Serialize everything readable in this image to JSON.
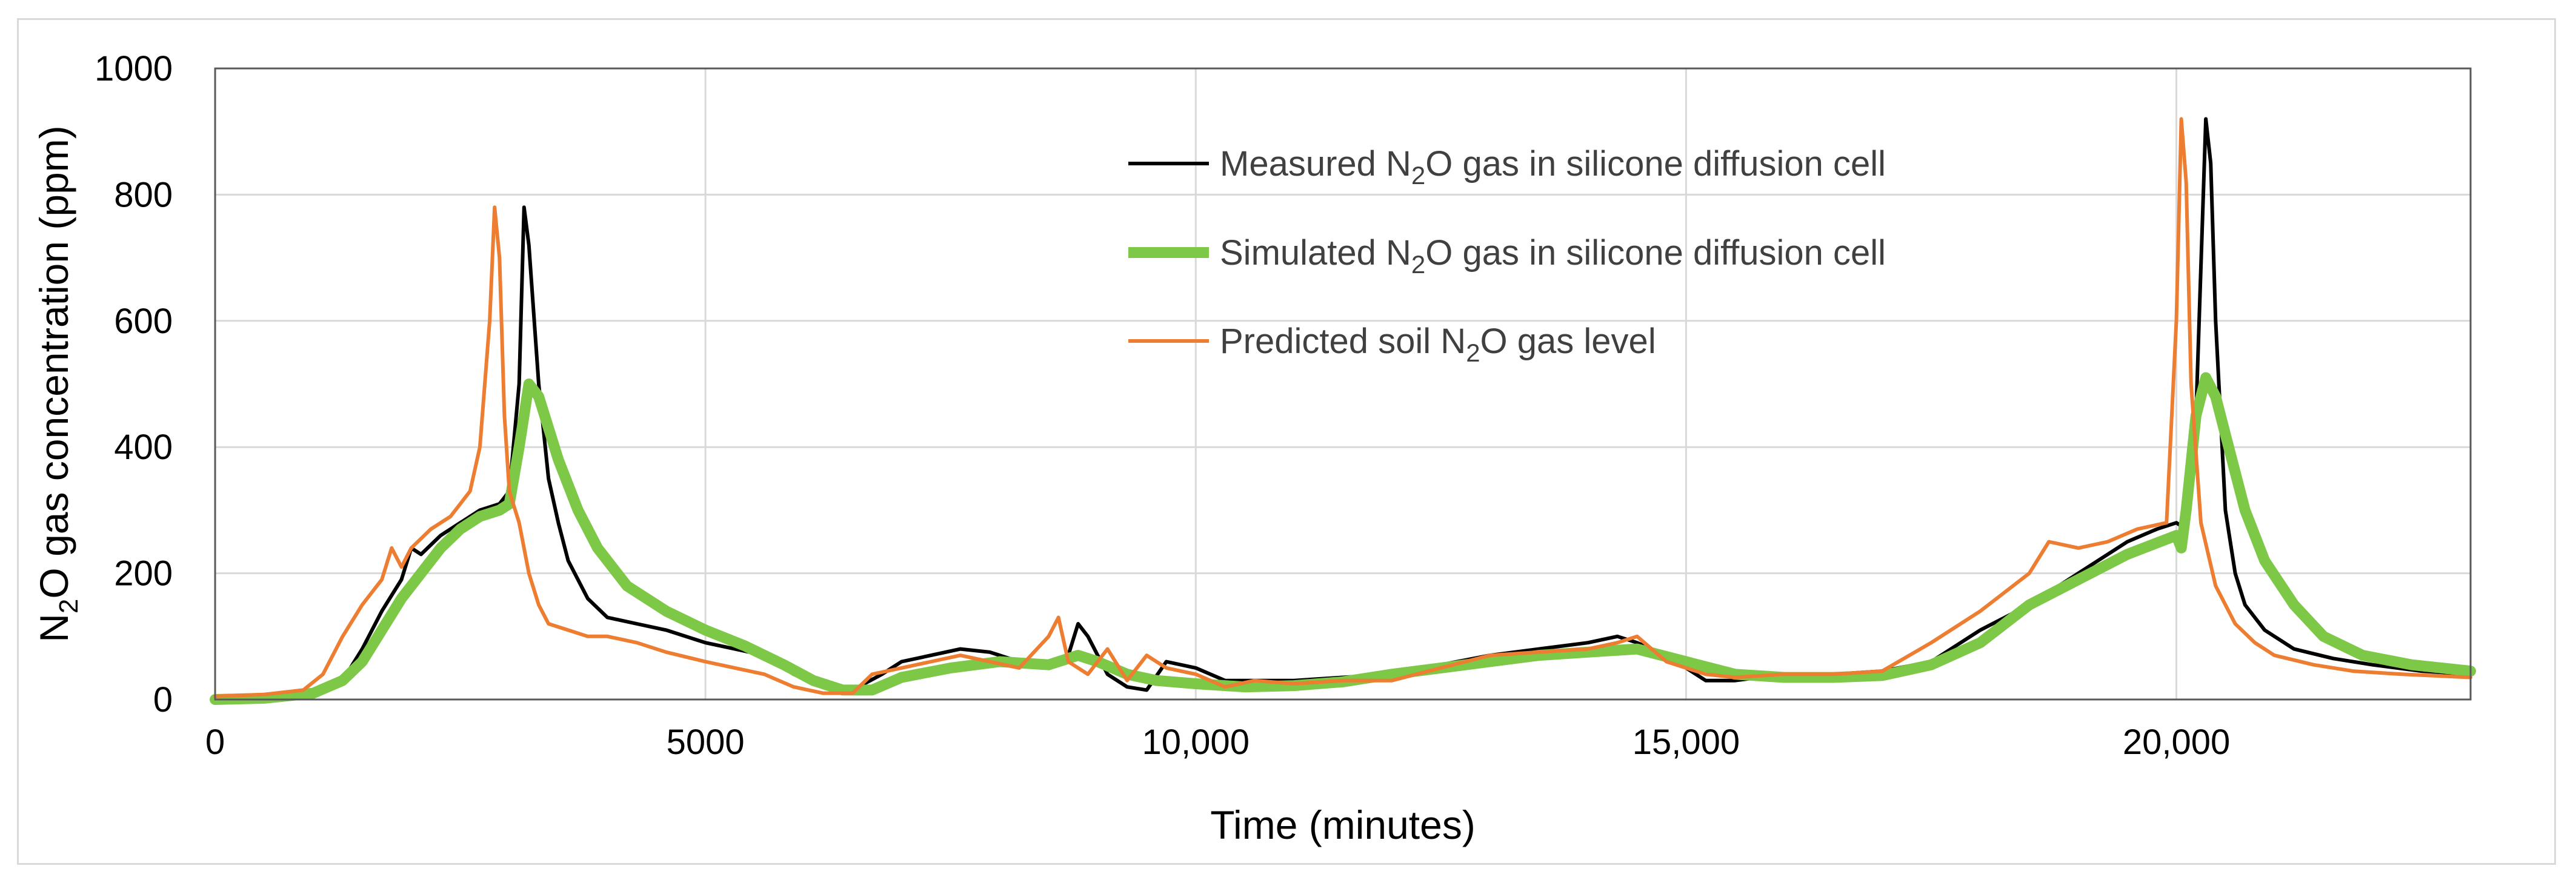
{
  "chart_data": {
    "type": "line",
    "xlabel": "Time (minutes)",
    "ylabel_parts": [
      "N",
      "2",
      "O gas concentration (ppm)"
    ],
    "xlim": [
      0,
      23000
    ],
    "ylim": [
      0,
      1000
    ],
    "x_ticks": [
      0,
      5000,
      10000,
      15000,
      20000
    ],
    "x_tick_labels": [
      "0",
      "5000",
      "10,000",
      "15,000",
      "20,000"
    ],
    "y_ticks": [
      0,
      200,
      400,
      600,
      800,
      1000
    ],
    "y_tick_labels": [
      "0",
      "200",
      "400",
      "600",
      "800",
      "1000"
    ],
    "grid": true,
    "legend_position": "top-center",
    "series": [
      {
        "name_parts": [
          "Measured ",
          "N",
          "2",
          "O",
          " gas in silicone diffusion cell"
        ],
        "color": "#000000",
        "x": [
          0,
          500,
          1000,
          1300,
          1500,
          1700,
          1900,
          2000,
          2100,
          2300,
          2500,
          2700,
          2800,
          2900,
          3000,
          3100,
          3150,
          3200,
          3300,
          3400,
          3500,
          3600,
          3800,
          4000,
          4300,
          4600,
          5000,
          5300,
          5600,
          5900,
          6200,
          6500,
          6800,
          7000,
          7300,
          7600,
          7900,
          8200,
          8500,
          8700,
          8800,
          8900,
          9100,
          9300,
          9500,
          9700,
          10000,
          10300,
          10600,
          11000,
          11500,
          12000,
          12500,
          13000,
          13500,
          14000,
          14300,
          14500,
          14800,
          15200,
          15500,
          16000,
          16500,
          17000,
          17500,
          18000,
          18500,
          19000,
          19500,
          19800,
          20000,
          20100,
          20200,
          20300,
          20350,
          20400,
          20500,
          20600,
          20700,
          20900,
          21200,
          21600,
          22000,
          22500,
          23000
        ],
        "y": [
          5,
          5,
          10,
          30,
          80,
          140,
          190,
          240,
          230,
          260,
          280,
          300,
          305,
          310,
          330,
          500,
          780,
          720,
          500,
          350,
          280,
          220,
          160,
          130,
          120,
          110,
          90,
          80,
          70,
          40,
          20,
          15,
          40,
          60,
          70,
          80,
          75,
          60,
          50,
          70,
          120,
          100,
          40,
          20,
          15,
          60,
          50,
          30,
          30,
          30,
          35,
          40,
          55,
          70,
          80,
          90,
          100,
          90,
          70,
          30,
          30,
          40,
          40,
          45,
          60,
          110,
          150,
          200,
          250,
          270,
          280,
          270,
          450,
          920,
          850,
          600,
          300,
          200,
          150,
          110,
          80,
          65,
          55,
          45,
          40
        ]
      },
      {
        "name_parts": [
          "Simulated ",
          "N",
          "2",
          "O",
          " gas in silicone diffusion cell"
        ],
        "color": "#7dc847",
        "x": [
          0,
          500,
          1000,
          1300,
          1500,
          1700,
          1900,
          2100,
          2300,
          2500,
          2700,
          2900,
          3000,
          3100,
          3200,
          3300,
          3400,
          3500,
          3700,
          3900,
          4200,
          4600,
          5000,
          5400,
          5800,
          6100,
          6400,
          6700,
          7000,
          7500,
          8000,
          8500,
          8800,
          9000,
          9300,
          9600,
          10000,
          10500,
          11000,
          11500,
          12000,
          12500,
          13000,
          13500,
          14000,
          14500,
          15000,
          15500,
          16000,
          16500,
          17000,
          17500,
          18000,
          18500,
          19000,
          19500,
          20000,
          20050,
          20100,
          20200,
          20300,
          20400,
          20500,
          20700,
          20900,
          21200,
          21500,
          21900,
          22400,
          23000
        ],
        "y": [
          0,
          2,
          10,
          30,
          60,
          110,
          160,
          200,
          240,
          270,
          290,
          300,
          310,
          400,
          500,
          480,
          430,
          380,
          300,
          240,
          180,
          140,
          110,
          85,
          55,
          30,
          15,
          15,
          35,
          50,
          60,
          55,
          70,
          60,
          40,
          30,
          25,
          20,
          22,
          28,
          40,
          50,
          60,
          70,
          75,
          80,
          60,
          40,
          35,
          35,
          38,
          55,
          90,
          150,
          190,
          230,
          260,
          240,
          300,
          450,
          510,
          480,
          420,
          300,
          220,
          150,
          100,
          70,
          55,
          45
        ]
      },
      {
        "name_parts": [
          "Predicted soil ",
          "N",
          "2",
          "O",
          " gas level"
        ],
        "color": "#ed7d31",
        "x": [
          0,
          500,
          900,
          1100,
          1300,
          1500,
          1700,
          1800,
          1900,
          2000,
          2200,
          2400,
          2600,
          2700,
          2800,
          2850,
          2900,
          2950,
          3000,
          3100,
          3200,
          3300,
          3400,
          3600,
          3800,
          4000,
          4300,
          4600,
          5000,
          5300,
          5600,
          5900,
          6200,
          6500,
          6700,
          7000,
          7300,
          7600,
          7900,
          8200,
          8500,
          8600,
          8700,
          8900,
          9100,
          9300,
          9500,
          9700,
          10000,
          10300,
          10600,
          11000,
          11500,
          12000,
          12500,
          13000,
          13500,
          14000,
          14300,
          14500,
          14800,
          15200,
          15500,
          16000,
          16500,
          17000,
          17500,
          18000,
          18500,
          18700,
          19000,
          19300,
          19600,
          19900,
          20000,
          20050,
          20100,
          20150,
          20250,
          20400,
          20600,
          20800,
          21000,
          21400,
          21800,
          22300,
          23000
        ],
        "y": [
          5,
          8,
          15,
          40,
          100,
          150,
          190,
          240,
          210,
          240,
          270,
          290,
          330,
          400,
          600,
          780,
          700,
          450,
          330,
          280,
          200,
          150,
          120,
          110,
          100,
          100,
          90,
          75,
          60,
          50,
          40,
          20,
          10,
          10,
          40,
          50,
          60,
          70,
          60,
          50,
          100,
          130,
          60,
          40,
          80,
          30,
          70,
          50,
          40,
          20,
          30,
          25,
          30,
          30,
          50,
          70,
          75,
          80,
          90,
          100,
          60,
          40,
          35,
          40,
          40,
          45,
          90,
          140,
          200,
          250,
          240,
          250,
          270,
          280,
          600,
          920,
          820,
          500,
          280,
          180,
          120,
          90,
          70,
          55,
          45,
          40,
          35
        ]
      }
    ]
  }
}
